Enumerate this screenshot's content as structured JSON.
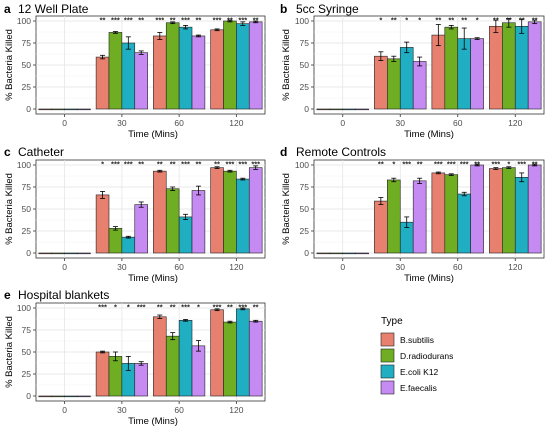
{
  "legend": {
    "title": "Type",
    "entries": [
      {
        "name": "B.subtilis",
        "color": "#E8806F"
      },
      {
        "name": "D.radiodurans",
        "color": "#6FAE22"
      },
      {
        "name": "E.coli K12",
        "color": "#20AFC2"
      },
      {
        "name": "E.faecalis",
        "color": "#C58BF2"
      }
    ]
  },
  "chart_data": [
    {
      "type": "bar",
      "panel_letter": "a",
      "title": "12 Well Plate",
      "xlabel": "Time (Mins)",
      "ylabel": "% Bacteria Killed",
      "ylim": [
        0,
        100
      ],
      "yticks": [
        0,
        25,
        50,
        75,
        100
      ],
      "grid": true,
      "categories": [
        "0",
        "30",
        "60",
        "120"
      ],
      "series": [
        {
          "name": "B.subtilis",
          "values": [
            0,
            59,
            83,
            90
          ],
          "errors": [
            0,
            2,
            4,
            1
          ]
        },
        {
          "name": "D.radiodurans",
          "values": [
            0,
            87,
            98,
            100
          ],
          "errors": [
            0,
            1,
            1,
            1
          ]
        },
        {
          "name": "E.coli K12",
          "values": [
            0,
            75,
            93,
            97
          ],
          "errors": [
            0,
            7,
            2,
            2
          ]
        },
        {
          "name": "E.faecalis",
          "values": [
            0,
            64,
            83,
            99
          ],
          "errors": [
            0,
            2,
            1,
            1
          ]
        }
      ],
      "significance": [
        [
          "",
          "",
          "",
          ""
        ],
        [
          "**",
          "***",
          "***",
          "**"
        ],
        [
          "***",
          "**",
          "***",
          "**"
        ],
        [
          "***",
          "**",
          "***",
          "**"
        ]
      ]
    },
    {
      "type": "bar",
      "panel_letter": "b",
      "title": "5cc Syringe",
      "xlabel": "Time (Mins)",
      "ylabel": "% Bacteria Killed",
      "ylim": [
        0,
        100
      ],
      "yticks": [
        0,
        25,
        50,
        75,
        100
      ],
      "grid": true,
      "categories": [
        "0",
        "30",
        "60",
        "120"
      ],
      "series": [
        {
          "name": "B.subtilis",
          "values": [
            0,
            60,
            84,
            94
          ],
          "errors": [
            0,
            5,
            12,
            7
          ]
        },
        {
          "name": "D.radiodurans",
          "values": [
            0,
            57,
            93,
            98
          ],
          "errors": [
            0,
            3,
            2,
            5
          ]
        },
        {
          "name": "E.coli K12",
          "values": [
            0,
            70,
            80,
            94
          ],
          "errors": [
            0,
            6,
            12,
            8
          ]
        },
        {
          "name": "E.faecalis",
          "values": [
            0,
            54,
            80,
            99
          ],
          "errors": [
            0,
            5,
            1,
            2
          ]
        }
      ],
      "significance": [
        [
          "",
          "",
          "",
          ""
        ],
        [
          "*",
          "**",
          "*",
          "*"
        ],
        [
          "**",
          "**",
          "**",
          "*"
        ],
        [
          "**",
          "**",
          "**",
          "**"
        ]
      ]
    },
    {
      "type": "bar",
      "panel_letter": "c",
      "title": "Catheter",
      "xlabel": "Time (Mins)",
      "ylabel": "% Bacteria Killed",
      "ylim": [
        0,
        100
      ],
      "yticks": [
        0,
        25,
        50,
        75,
        100
      ],
      "grid": true,
      "categories": [
        "0",
        "30",
        "60",
        "120"
      ],
      "series": [
        {
          "name": "B.subtilis",
          "values": [
            0,
            66,
            93,
            97
          ],
          "errors": [
            0,
            4,
            1,
            1
          ]
        },
        {
          "name": "D.radiodurans",
          "values": [
            0,
            28,
            73,
            93
          ],
          "errors": [
            0,
            2,
            2,
            1
          ]
        },
        {
          "name": "E.coli K12",
          "values": [
            0,
            18,
            41,
            84
          ],
          "errors": [
            0,
            1,
            3,
            1
          ]
        },
        {
          "name": "E.faecalis",
          "values": [
            0,
            55,
            71,
            97
          ],
          "errors": [
            0,
            3,
            5,
            2
          ]
        }
      ],
      "significance": [
        [
          "",
          "",
          "",
          ""
        ],
        [
          "*",
          "***",
          "***",
          "**"
        ],
        [
          "**",
          "**",
          "***",
          "**"
        ],
        [
          "**",
          "***",
          "***",
          "***"
        ]
      ]
    },
    {
      "type": "bar",
      "panel_letter": "d",
      "title": "Remote Controls",
      "xlabel": "Time (Mins)",
      "ylabel": "% Bacteria Killed",
      "ylim": [
        0,
        100
      ],
      "yticks": [
        0,
        25,
        50,
        75,
        100
      ],
      "grid": true,
      "categories": [
        "0",
        "30",
        "60",
        "120"
      ],
      "series": [
        {
          "name": "B.subtilis",
          "values": [
            0,
            59,
            91,
            96
          ],
          "errors": [
            0,
            4,
            1,
            1
          ]
        },
        {
          "name": "D.radiodurans",
          "values": [
            0,
            83,
            89,
            97
          ],
          "errors": [
            0,
            2,
            1,
            1
          ]
        },
        {
          "name": "E.coli K12",
          "values": [
            0,
            35,
            67,
            86
          ],
          "errors": [
            0,
            6,
            2,
            5
          ]
        },
        {
          "name": "E.faecalis",
          "values": [
            0,
            82,
            100,
            100
          ],
          "errors": [
            0,
            3,
            1,
            1
          ]
        }
      ],
      "significance": [
        [
          "",
          "",
          "",
          ""
        ],
        [
          "**",
          "*",
          "***",
          "**"
        ],
        [
          "***",
          "***",
          "***",
          "**"
        ],
        [
          "***",
          "*",
          "***",
          "**"
        ]
      ]
    },
    {
      "type": "bar",
      "panel_letter": "e",
      "title": "Hospital blankets",
      "xlabel": "Time (Mins)",
      "ylabel": "% Bacteria Killed",
      "ylim": [
        0,
        100
      ],
      "yticks": [
        0,
        25,
        50,
        75,
        100
      ],
      "grid": true,
      "categories": [
        "0",
        "30",
        "60",
        "120"
      ],
      "series": [
        {
          "name": "B.subtilis",
          "values": [
            0,
            50,
            90,
            98
          ],
          "errors": [
            0,
            1,
            2,
            1
          ]
        },
        {
          "name": "D.radiodurans",
          "values": [
            0,
            45,
            68,
            84
          ],
          "errors": [
            0,
            5,
            4,
            1
          ]
        },
        {
          "name": "E.coli K12",
          "values": [
            0,
            37,
            86,
            99
          ],
          "errors": [
            0,
            8,
            1,
            1
          ]
        },
        {
          "name": "E.faecalis",
          "values": [
            0,
            37,
            57,
            85
          ],
          "errors": [
            0,
            2,
            6,
            1
          ]
        }
      ],
      "significance": [
        [
          "",
          "",
          "",
          ""
        ],
        [
          "***",
          "*",
          "*",
          "***"
        ],
        [
          "**",
          "**",
          "***",
          "*"
        ],
        [
          "***",
          "**",
          "***",
          "**"
        ]
      ]
    }
  ]
}
